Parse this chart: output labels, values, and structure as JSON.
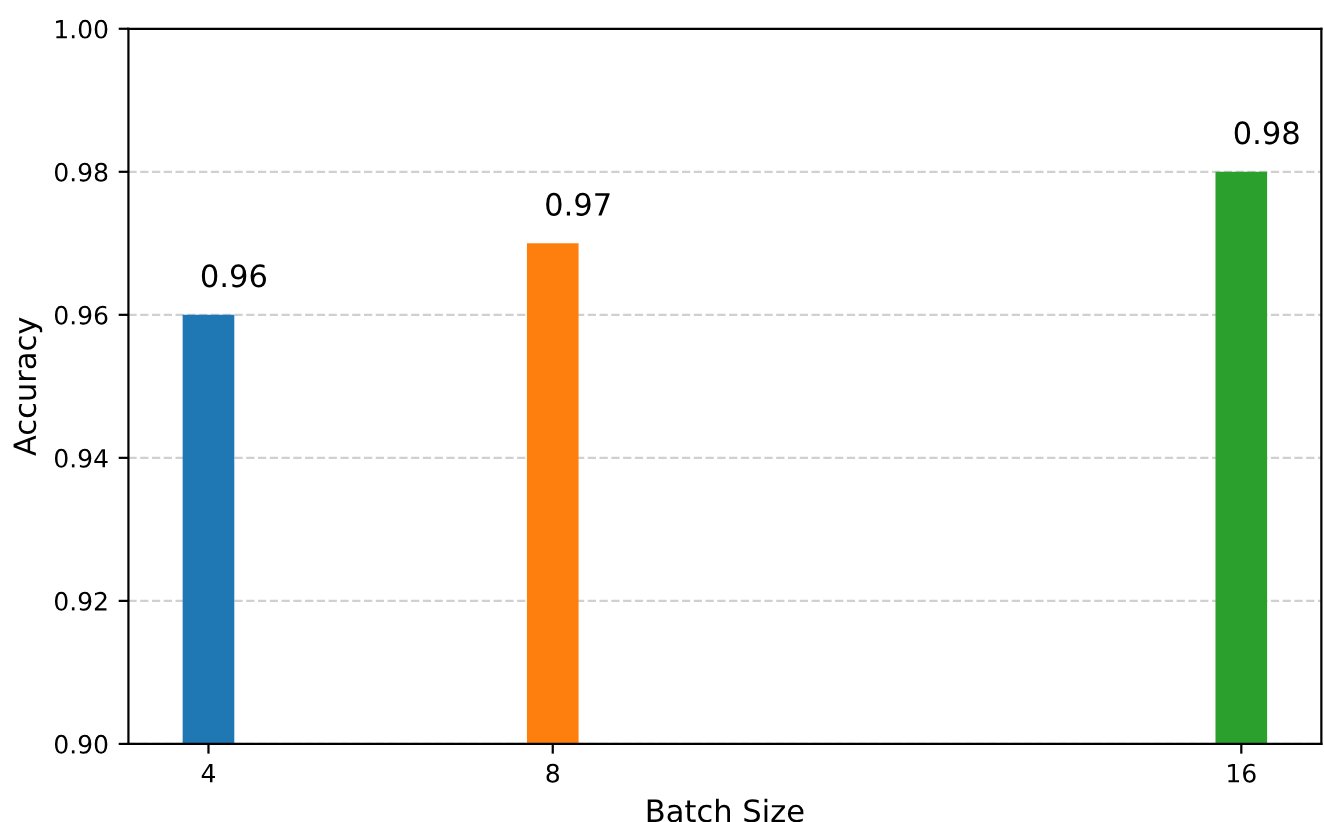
{
  "chart_data": {
    "type": "bar",
    "xlabel": "Batch Size",
    "ylabel": "Accuracy",
    "x": [
      4,
      8,
      16
    ],
    "values": [
      0.96,
      0.97,
      0.98
    ],
    "colors": [
      "#1f77b4",
      "#ff7f0e",
      "#2ca02c"
    ],
    "xlim": [
      3.07,
      16.93
    ],
    "xticks": [
      4,
      8,
      16
    ],
    "ylim": [
      0.9,
      1.0
    ],
    "yticks": [
      {
        "value": 0.9,
        "label": "0.90"
      },
      {
        "value": 0.92,
        "label": "0.92"
      },
      {
        "value": 0.94,
        "label": "0.94"
      },
      {
        "value": 0.96,
        "label": "0.96"
      },
      {
        "value": 0.98,
        "label": "0.98"
      },
      {
        "value": 1.0,
        "label": "1.00"
      }
    ],
    "grid": "y",
    "data_labels": true
  }
}
